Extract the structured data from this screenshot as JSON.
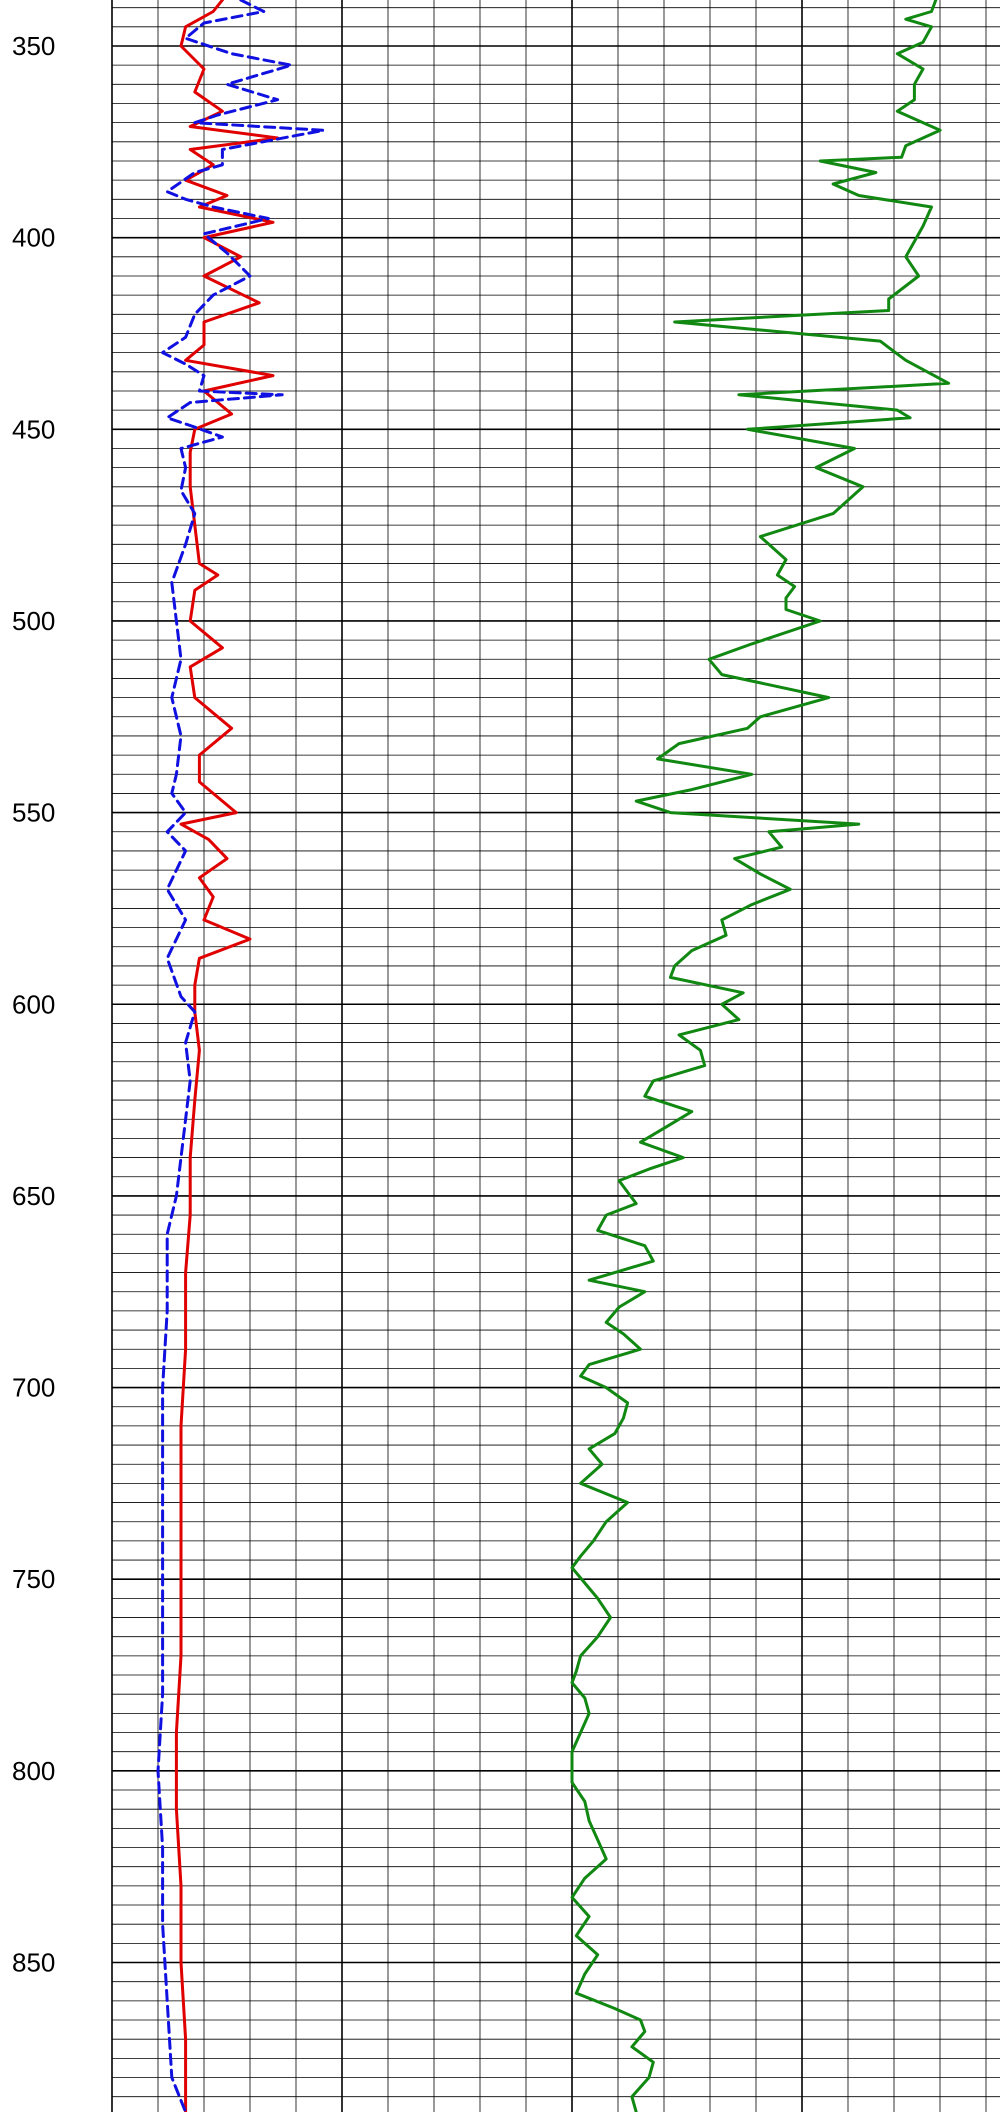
{
  "chart_data": {
    "type": "line",
    "title": "",
    "xlabel": "",
    "ylabel": "",
    "orientation": "vertical-depth-log",
    "grid": true,
    "ylim": [
      338,
      889
    ],
    "depth_ticks": [
      "350",
      "400",
      "450",
      "500",
      "550",
      "600",
      "650",
      "700",
      "750",
      "800",
      "850"
    ],
    "track1_xlim": [
      0,
      10
    ],
    "track2_xlim": [
      0,
      10
    ],
    "series": [
      {
        "track": 1,
        "color": "#e00000",
        "dash": "solid",
        "points": [
          [
            2.4,
            338
          ],
          [
            2.2,
            341
          ],
          [
            1.6,
            345
          ],
          [
            1.5,
            350
          ],
          [
            2.0,
            356
          ],
          [
            1.8,
            362
          ],
          [
            2.4,
            367
          ],
          [
            1.7,
            371
          ],
          [
            3.6,
            374
          ],
          [
            1.7,
            377
          ],
          [
            2.2,
            381
          ],
          [
            1.6,
            385
          ],
          [
            2.5,
            389
          ],
          [
            1.9,
            392
          ],
          [
            3.5,
            396
          ],
          [
            2.0,
            400
          ],
          [
            2.8,
            405
          ],
          [
            2.0,
            410
          ],
          [
            3.2,
            417
          ],
          [
            2.0,
            422
          ],
          [
            2.0,
            428
          ],
          [
            1.6,
            432
          ],
          [
            3.5,
            436
          ],
          [
            2.0,
            440
          ],
          [
            2.6,
            446
          ],
          [
            1.8,
            450
          ],
          [
            1.7,
            456
          ],
          [
            1.7,
            465
          ],
          [
            1.8,
            475
          ],
          [
            1.9,
            485
          ],
          [
            2.3,
            488
          ],
          [
            1.8,
            492
          ],
          [
            1.7,
            500
          ],
          [
            2.4,
            507
          ],
          [
            1.7,
            512
          ],
          [
            1.8,
            520
          ],
          [
            2.6,
            528
          ],
          [
            1.9,
            535
          ],
          [
            1.9,
            542
          ],
          [
            2.7,
            550
          ],
          [
            1.5,
            553
          ],
          [
            2.1,
            557
          ],
          [
            2.5,
            562
          ],
          [
            1.9,
            567
          ],
          [
            2.2,
            572
          ],
          [
            2.0,
            578
          ],
          [
            3.0,
            583
          ],
          [
            1.9,
            588
          ],
          [
            1.8,
            595
          ],
          [
            1.8,
            602
          ],
          [
            1.9,
            612
          ],
          [
            1.8,
            625
          ],
          [
            1.7,
            640
          ],
          [
            1.7,
            655
          ],
          [
            1.6,
            670
          ],
          [
            1.6,
            690
          ],
          [
            1.5,
            710
          ],
          [
            1.5,
            730
          ],
          [
            1.5,
            750
          ],
          [
            1.5,
            770
          ],
          [
            1.4,
            790
          ],
          [
            1.4,
            810
          ],
          [
            1.5,
            830
          ],
          [
            1.5,
            850
          ],
          [
            1.6,
            870
          ],
          [
            1.6,
            889
          ]
        ]
      },
      {
        "track": 1,
        "color": "#1010e0",
        "dash": "dashed",
        "points": [
          [
            2.8,
            338
          ],
          [
            3.3,
            341
          ],
          [
            2.0,
            344
          ],
          [
            1.6,
            348
          ],
          [
            2.6,
            352
          ],
          [
            3.9,
            355
          ],
          [
            2.5,
            360
          ],
          [
            3.6,
            364
          ],
          [
            2.3,
            368
          ],
          [
            1.8,
            370
          ],
          [
            4.6,
            372
          ],
          [
            2.4,
            377
          ],
          [
            2.4,
            381
          ],
          [
            1.8,
            383
          ],
          [
            1.2,
            388
          ],
          [
            1.6,
            390
          ],
          [
            2.2,
            392
          ],
          [
            3.4,
            395
          ],
          [
            2.0,
            399
          ],
          [
            2.5,
            404
          ],
          [
            3.0,
            410
          ],
          [
            2.2,
            415
          ],
          [
            1.8,
            420
          ],
          [
            1.6,
            426
          ],
          [
            1.1,
            430
          ],
          [
            1.6,
            433
          ],
          [
            2.0,
            436
          ],
          [
            1.9,
            440
          ],
          [
            3.7,
            441
          ],
          [
            1.7,
            443
          ],
          [
            1.2,
            447
          ],
          [
            1.7,
            449
          ],
          [
            2.4,
            452
          ],
          [
            1.5,
            455
          ],
          [
            1.6,
            460
          ],
          [
            1.5,
            466
          ],
          [
            1.8,
            472
          ],
          [
            1.6,
            480
          ],
          [
            1.3,
            490
          ],
          [
            1.4,
            500
          ],
          [
            1.5,
            510
          ],
          [
            1.3,
            520
          ],
          [
            1.5,
            530
          ],
          [
            1.4,
            540
          ],
          [
            1.3,
            545
          ],
          [
            1.6,
            550
          ],
          [
            1.2,
            555
          ],
          [
            1.6,
            560
          ],
          [
            1.2,
            570
          ],
          [
            1.6,
            578
          ],
          [
            1.2,
            588
          ],
          [
            1.5,
            598
          ],
          [
            1.8,
            602
          ],
          [
            1.6,
            610
          ],
          [
            1.7,
            620
          ],
          [
            1.6,
            630
          ],
          [
            1.5,
            640
          ],
          [
            1.4,
            650
          ],
          [
            1.2,
            660
          ],
          [
            1.2,
            680
          ],
          [
            1.1,
            700
          ],
          [
            1.1,
            720
          ],
          [
            1.1,
            740
          ],
          [
            1.1,
            760
          ],
          [
            1.1,
            780
          ],
          [
            1.0,
            800
          ],
          [
            1.1,
            820
          ],
          [
            1.1,
            840
          ],
          [
            1.2,
            860
          ],
          [
            1.3,
            880
          ],
          [
            1.6,
            889
          ]
        ]
      },
      {
        "track": 2,
        "color": "#118811",
        "dash": "solid",
        "points": [
          [
            8.5,
            338
          ],
          [
            8.4,
            341
          ],
          [
            7.8,
            343
          ],
          [
            8.4,
            345
          ],
          [
            8.2,
            349
          ],
          [
            7.6,
            352
          ],
          [
            8.2,
            356
          ],
          [
            8.0,
            360
          ],
          [
            8.0,
            364
          ],
          [
            7.6,
            367
          ],
          [
            8.6,
            372
          ],
          [
            7.8,
            376
          ],
          [
            7.7,
            379
          ],
          [
            5.8,
            380
          ],
          [
            7.1,
            383
          ],
          [
            6.1,
            386
          ],
          [
            6.7,
            389
          ],
          [
            8.4,
            392
          ],
          [
            8.2,
            397
          ],
          [
            7.8,
            405
          ],
          [
            8.1,
            410
          ],
          [
            7.4,
            416
          ],
          [
            7.4,
            419
          ],
          [
            2.4,
            422
          ],
          [
            7.2,
            427
          ],
          [
            7.8,
            432
          ],
          [
            8.8,
            438
          ],
          [
            3.9,
            441
          ],
          [
            7.6,
            445
          ],
          [
            7.9,
            447
          ],
          [
            4.1,
            450
          ],
          [
            6.6,
            455
          ],
          [
            5.7,
            460
          ],
          [
            6.8,
            465
          ],
          [
            6.1,
            472
          ],
          [
            4.4,
            478
          ],
          [
            5.0,
            484
          ],
          [
            4.8,
            488
          ],
          [
            5.2,
            491
          ],
          [
            5.0,
            494
          ],
          [
            5.0,
            497
          ],
          [
            5.8,
            500
          ],
          [
            4.2,
            506
          ],
          [
            3.2,
            510
          ],
          [
            3.5,
            514
          ],
          [
            6.0,
            520
          ],
          [
            4.4,
            525
          ],
          [
            4.1,
            528
          ],
          [
            2.5,
            532
          ],
          [
            2.0,
            536
          ],
          [
            4.2,
            540
          ],
          [
            2.8,
            544
          ],
          [
            1.5,
            547
          ],
          [
            2.3,
            550
          ],
          [
            6.7,
            553
          ],
          [
            4.6,
            555
          ],
          [
            4.9,
            559
          ],
          [
            3.8,
            562
          ],
          [
            4.4,
            566
          ],
          [
            5.1,
            570
          ],
          [
            4.2,
            574
          ],
          [
            3.5,
            578
          ],
          [
            3.6,
            582
          ],
          [
            2.8,
            586
          ],
          [
            2.4,
            590
          ],
          [
            2.3,
            593
          ],
          [
            4.0,
            597
          ],
          [
            3.5,
            600
          ],
          [
            3.9,
            604
          ],
          [
            2.5,
            608
          ],
          [
            3.0,
            612
          ],
          [
            3.1,
            616
          ],
          [
            1.9,
            620
          ],
          [
            1.7,
            624
          ],
          [
            2.8,
            628
          ],
          [
            2.2,
            632
          ],
          [
            1.6,
            636
          ],
          [
            2.6,
            640
          ],
          [
            1.8,
            643
          ],
          [
            1.1,
            646
          ],
          [
            1.3,
            649
          ],
          [
            1.5,
            652
          ],
          [
            0.8,
            655
          ],
          [
            0.6,
            659
          ],
          [
            1.7,
            663
          ],
          [
            1.9,
            667
          ],
          [
            0.4,
            672
          ],
          [
            1.7,
            675
          ],
          [
            1.1,
            679
          ],
          [
            0.8,
            683
          ],
          [
            1.2,
            686
          ],
          [
            1.6,
            690
          ],
          [
            0.4,
            694
          ],
          [
            0.2,
            697
          ],
          [
            0.8,
            700
          ],
          [
            1.3,
            704
          ],
          [
            1.2,
            708
          ],
          [
            1.0,
            712
          ],
          [
            0.4,
            716
          ],
          [
            0.7,
            720
          ],
          [
            0.2,
            725
          ],
          [
            1.3,
            730
          ],
          [
            0.8,
            735
          ],
          [
            0.5,
            740
          ],
          [
            0.2,
            744
          ],
          [
            0.0,
            747
          ],
          [
            0.3,
            751
          ],
          [
            0.6,
            755
          ],
          [
            0.9,
            760
          ],
          [
            0.6,
            765
          ],
          [
            0.2,
            770
          ],
          [
            0.1,
            774
          ],
          [
            0.0,
            777
          ],
          [
            0.3,
            781
          ],
          [
            0.4,
            785
          ],
          [
            0.2,
            790
          ],
          [
            0.0,
            795
          ],
          [
            0.0,
            800
          ],
          [
            0.0,
            803
          ],
          [
            0.3,
            808
          ],
          [
            0.4,
            813
          ],
          [
            0.6,
            818
          ],
          [
            0.8,
            823
          ],
          [
            0.3,
            828
          ],
          [
            0.0,
            833
          ],
          [
            0.4,
            838
          ],
          [
            0.1,
            843
          ],
          [
            0.6,
            848
          ],
          [
            0.3,
            853
          ],
          [
            0.1,
            858
          ],
          [
            1.0,
            862
          ],
          [
            1.6,
            865
          ],
          [
            1.7,
            868
          ],
          [
            1.4,
            872
          ],
          [
            1.9,
            876
          ],
          [
            1.8,
            880
          ],
          [
            1.4,
            885
          ],
          [
            1.5,
            889
          ]
        ]
      }
    ]
  }
}
